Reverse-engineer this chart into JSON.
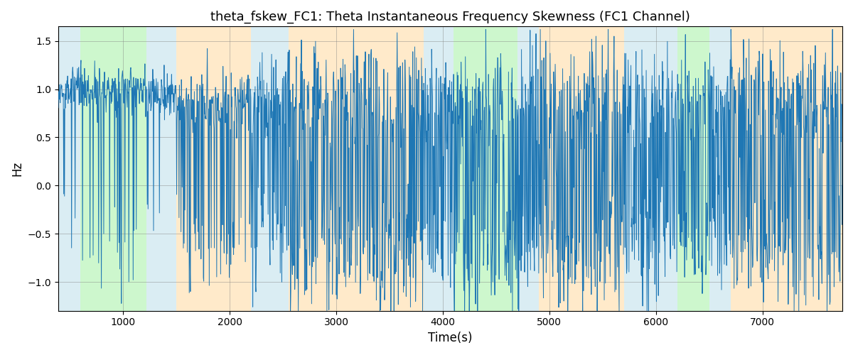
{
  "title": "theta_fskew_FC1: Theta Instantaneous Frequency Skewness (FC1 Channel)",
  "xlabel": "Time(s)",
  "ylabel": "Hz",
  "xlim": [
    390,
    7750
  ],
  "ylim": [
    -1.3,
    1.65
  ],
  "line_color": "#1f77b4",
  "line_width": 0.7,
  "background_color": "#ffffff",
  "bands": [
    {
      "xmin": 390,
      "xmax": 600,
      "color": "#add8e6",
      "alpha": 0.45
    },
    {
      "xmin": 600,
      "xmax": 1220,
      "color": "#90ee90",
      "alpha": 0.45
    },
    {
      "xmin": 1220,
      "xmax": 1500,
      "color": "#add8e6",
      "alpha": 0.45
    },
    {
      "xmin": 1500,
      "xmax": 2200,
      "color": "#ffdaa0",
      "alpha": 0.55
    },
    {
      "xmin": 2200,
      "xmax": 2550,
      "color": "#add8e6",
      "alpha": 0.45
    },
    {
      "xmin": 2550,
      "xmax": 3820,
      "color": "#ffdaa0",
      "alpha": 0.55
    },
    {
      "xmin": 3820,
      "xmax": 4100,
      "color": "#add8e6",
      "alpha": 0.45
    },
    {
      "xmin": 4100,
      "xmax": 4700,
      "color": "#90ee90",
      "alpha": 0.45
    },
    {
      "xmin": 4700,
      "xmax": 4900,
      "color": "#add8e6",
      "alpha": 0.45
    },
    {
      "xmin": 4900,
      "xmax": 5700,
      "color": "#ffdaa0",
      "alpha": 0.55
    },
    {
      "xmin": 5700,
      "xmax": 6200,
      "color": "#add8e6",
      "alpha": 0.45
    },
    {
      "xmin": 6200,
      "xmax": 6500,
      "color": "#90ee90",
      "alpha": 0.45
    },
    {
      "xmin": 6500,
      "xmax": 6700,
      "color": "#add8e6",
      "alpha": 0.45
    },
    {
      "xmin": 6700,
      "xmax": 7750,
      "color": "#ffdaa0",
      "alpha": 0.55
    }
  ],
  "xticks": [
    1000,
    2000,
    3000,
    4000,
    5000,
    6000,
    7000
  ],
  "yticks": [
    -1.0,
    -0.5,
    0.0,
    0.5,
    1.0,
    1.5
  ],
  "title_fontsize": 13,
  "n_points": 2000
}
